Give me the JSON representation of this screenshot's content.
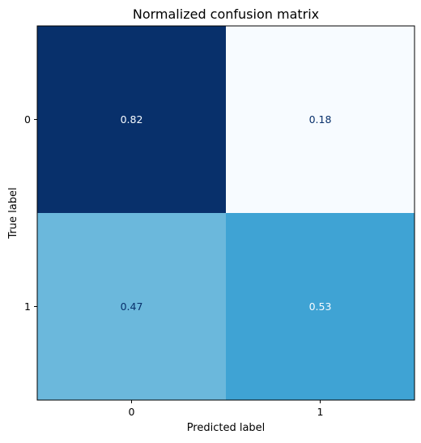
{
  "chart_data": {
    "type": "heatmap",
    "title": "Normalized confusion matrix",
    "xlabel": "Predicted label",
    "ylabel": "True label",
    "x_categories": [
      "0",
      "1"
    ],
    "y_categories": [
      "0",
      "1"
    ],
    "values": [
      [
        0.82,
        0.18
      ],
      [
        0.47,
        0.53
      ]
    ],
    "value_labels": [
      [
        "0.82",
        "0.18"
      ],
      [
        "0.47",
        "0.53"
      ]
    ],
    "colormap": "Blues",
    "cell_colors": [
      [
        "#08306b",
        "#f7fbff"
      ],
      [
        "#6bb8dc",
        "#3fa3d4"
      ]
    ],
    "label_colors": [
      [
        "#f7fbff",
        "#08306b"
      ],
      [
        "#08306b",
        "#f7fbff"
      ]
    ],
    "grid": false,
    "colorbar": false
  }
}
